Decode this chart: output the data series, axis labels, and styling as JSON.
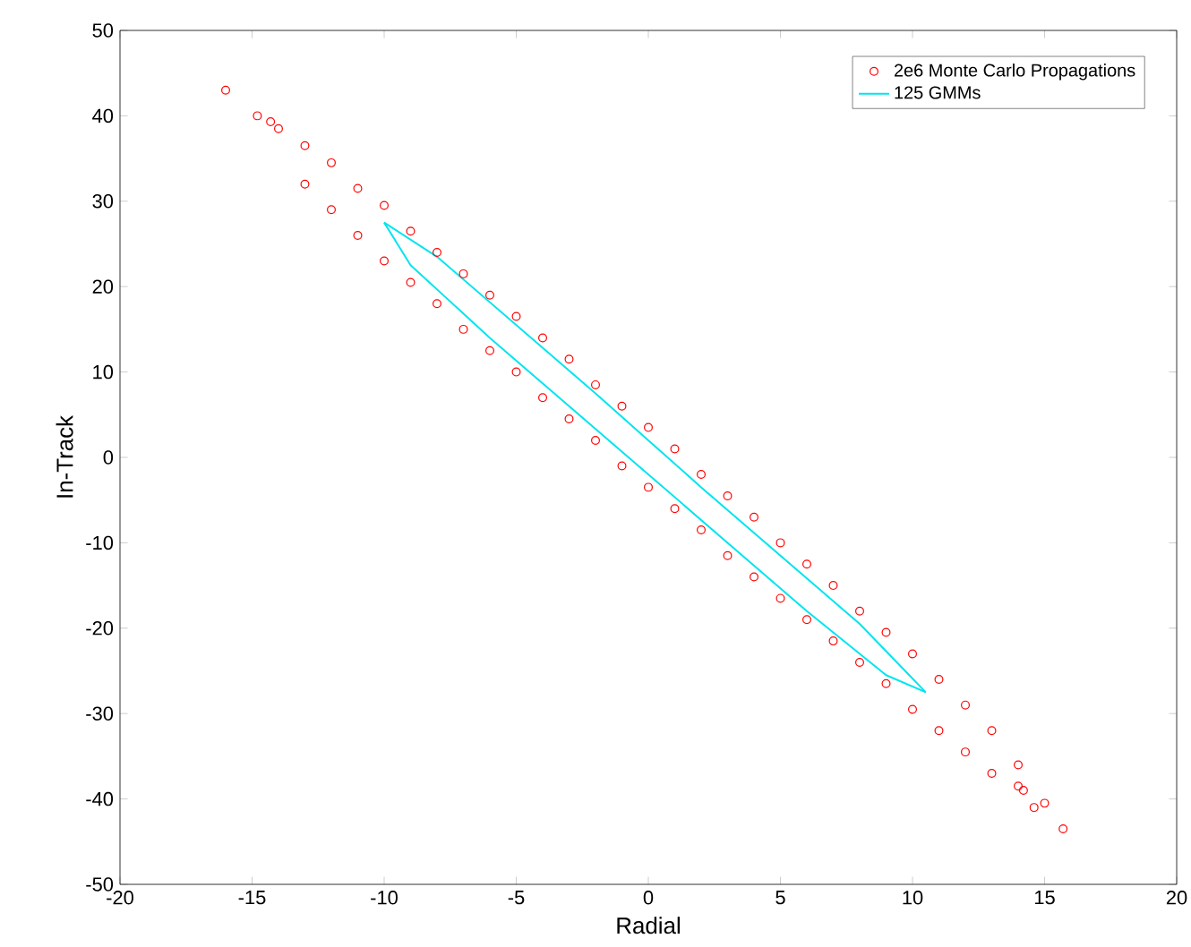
{
  "chart_data": {
    "type": "scatter",
    "xlabel": "Radial",
    "ylabel": "In-Track",
    "xlim": [
      -20,
      20
    ],
    "ylim": [
      -50,
      50
    ],
    "xticks": [
      -20,
      -15,
      -10,
      -5,
      0,
      5,
      10,
      15,
      20
    ],
    "yticks": [
      -50,
      -40,
      -30,
      -20,
      -10,
      0,
      10,
      20,
      30,
      40,
      50
    ],
    "grid": false,
    "legend": "top right",
    "series": [
      {
        "name": "2e6 Monte Carlo Propagations",
        "marker": "circle",
        "color": "#ff0000",
        "x": [
          -16,
          -14.8,
          -14.3,
          -14,
          -13,
          -12,
          -11,
          -10,
          -9,
          -8,
          -7,
          -6,
          -5,
          -4,
          -3,
          -2,
          -1,
          0,
          1,
          2,
          3,
          4,
          5,
          6,
          7,
          8,
          9,
          10,
          11,
          12,
          13,
          14,
          -13,
          -12,
          -11,
          -10,
          -9,
          -8,
          -7,
          -6,
          -5,
          -4,
          -3,
          -2,
          -1,
          0,
          1,
          2,
          3,
          4,
          5,
          6,
          7,
          8,
          9,
          10,
          11,
          12,
          13,
          14,
          15.7,
          15,
          14.6,
          14.2
        ],
        "values": [
          43,
          40,
          39.3,
          38.5,
          36.5,
          34.5,
          31.5,
          29.5,
          26.5,
          24,
          21.5,
          19,
          16.5,
          14,
          11.5,
          8.5,
          6,
          3.5,
          1,
          -2,
          -4.5,
          -7,
          -10,
          -12.5,
          -15,
          -18,
          -20.5,
          -23,
          -26,
          -29,
          -32,
          -36,
          32,
          29,
          26,
          23,
          20.5,
          18,
          15,
          12.5,
          10,
          7,
          4.5,
          2,
          -1,
          -3.5,
          -6,
          -8.5,
          -11.5,
          -14,
          -16.5,
          -19,
          -21.5,
          -24,
          -26.5,
          -29.5,
          -32,
          -34.5,
          -37,
          -38.5,
          -43.5,
          -40.5,
          -41,
          -39
        ]
      },
      {
        "name": "125 GMMs",
        "type": "line",
        "marker": "none",
        "color": "#00e5ee",
        "x": [
          -10,
          -8,
          -5,
          -2,
          0,
          2,
          5,
          8,
          10.5
        ],
        "values": [
          27.5,
          23.5,
          15.5,
          7.5,
          2,
          -3.5,
          -11.5,
          -19.5,
          -27.5
        ]
      },
      {
        "type": "line",
        "marker": "none",
        "color": "#00e5ee",
        "x": [
          -10,
          -9,
          -6,
          -3,
          0,
          3,
          6,
          9,
          10.5
        ],
        "values": [
          27.5,
          22.5,
          14,
          6,
          -2,
          -10,
          -18,
          -25.5,
          -27.5
        ]
      }
    ]
  }
}
